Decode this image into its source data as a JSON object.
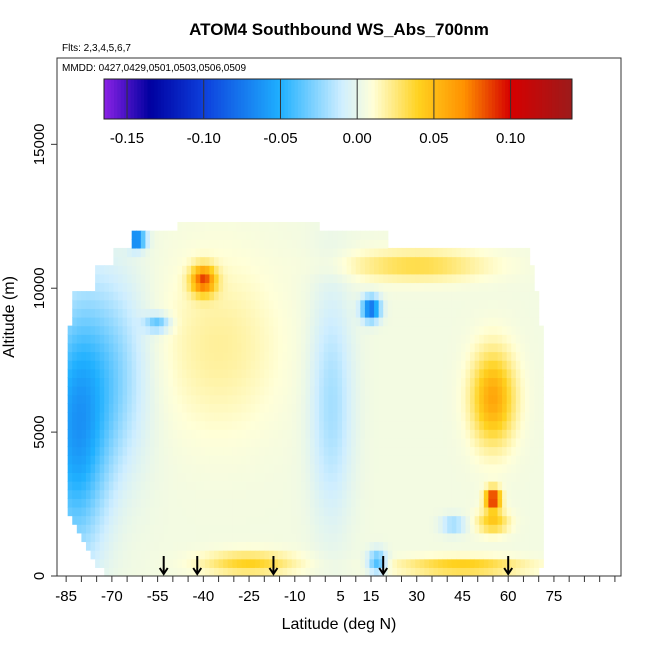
{
  "chart_data": {
    "type": "heatmap",
    "title": "ATOM4 Southbound WS_Abs_700nm",
    "flights_label": "Flts: 2,3,4,5,6,7",
    "dates_label": "MMDD: 0427,0429,0501,0503,0506,0509",
    "xlabel": "Latitude (deg N)",
    "ylabel": "Altitude (m)",
    "xlim": [
      -88,
      97
    ],
    "ylim": [
      0,
      18000
    ],
    "x_ticks": [
      -85,
      -70,
      -55,
      -40,
      -25,
      -10,
      5,
      15,
      30,
      45,
      60,
      75
    ],
    "x_tick_labels": [
      "-85",
      "-70",
      "-55",
      "-40",
      "-25",
      "-10",
      "5",
      "15",
      "30",
      "45",
      "60",
      "75"
    ],
    "y_ticks": [
      0,
      5000,
      10000,
      15000
    ],
    "y_tick_labels": [
      "0",
      "5000",
      "10000",
      "15000"
    ],
    "colorbar": {
      "min": -0.165,
      "max": 0.14,
      "ticks": [
        -0.15,
        -0.1,
        -0.05,
        0.0,
        0.05,
        0.1
      ],
      "tick_labels": [
        "-0.15",
        "-0.10",
        "-0.05",
        "0.00",
        "0.05",
        "0.10"
      ],
      "colors": [
        "#8b22e6",
        "#0000a0",
        "#0d3fdc",
        "#1fb0ff",
        "#cfeeff",
        "#ffffd8",
        "#ffd21f",
        "#ff9000",
        "#d60000",
        "#9c1b1b"
      ]
    },
    "flight_markers_lat": [
      -53,
      -42,
      -17,
      19,
      60
    ],
    "grid": false,
    "note": "Values estimated from rendered colors; field approximated as smooth function of latitude/altitude.",
    "field_points": [
      {
        "lat": -80,
        "alt": 5000,
        "value": -0.06
      },
      {
        "lat": -60,
        "alt": 5000,
        "value": -0.045
      },
      {
        "lat": -40,
        "alt": 5000,
        "value": -0.01
      },
      {
        "lat": -20,
        "alt": 5000,
        "value": 0.005
      },
      {
        "lat": 0,
        "alt": 5000,
        "value": -0.02
      },
      {
        "lat": 20,
        "alt": 5000,
        "value": -0.01
      },
      {
        "lat": 40,
        "alt": 5000,
        "value": 0.02
      },
      {
        "lat": 55,
        "alt": 6000,
        "value": 0.05
      },
      {
        "lat": 55,
        "alt": 2700,
        "value": 0.13
      },
      {
        "lat": -40,
        "alt": 10300,
        "value": 0.08
      },
      {
        "lat": 15,
        "alt": 9300,
        "value": -0.09
      },
      {
        "lat": -62,
        "alt": 11700,
        "value": -0.09
      }
    ]
  }
}
